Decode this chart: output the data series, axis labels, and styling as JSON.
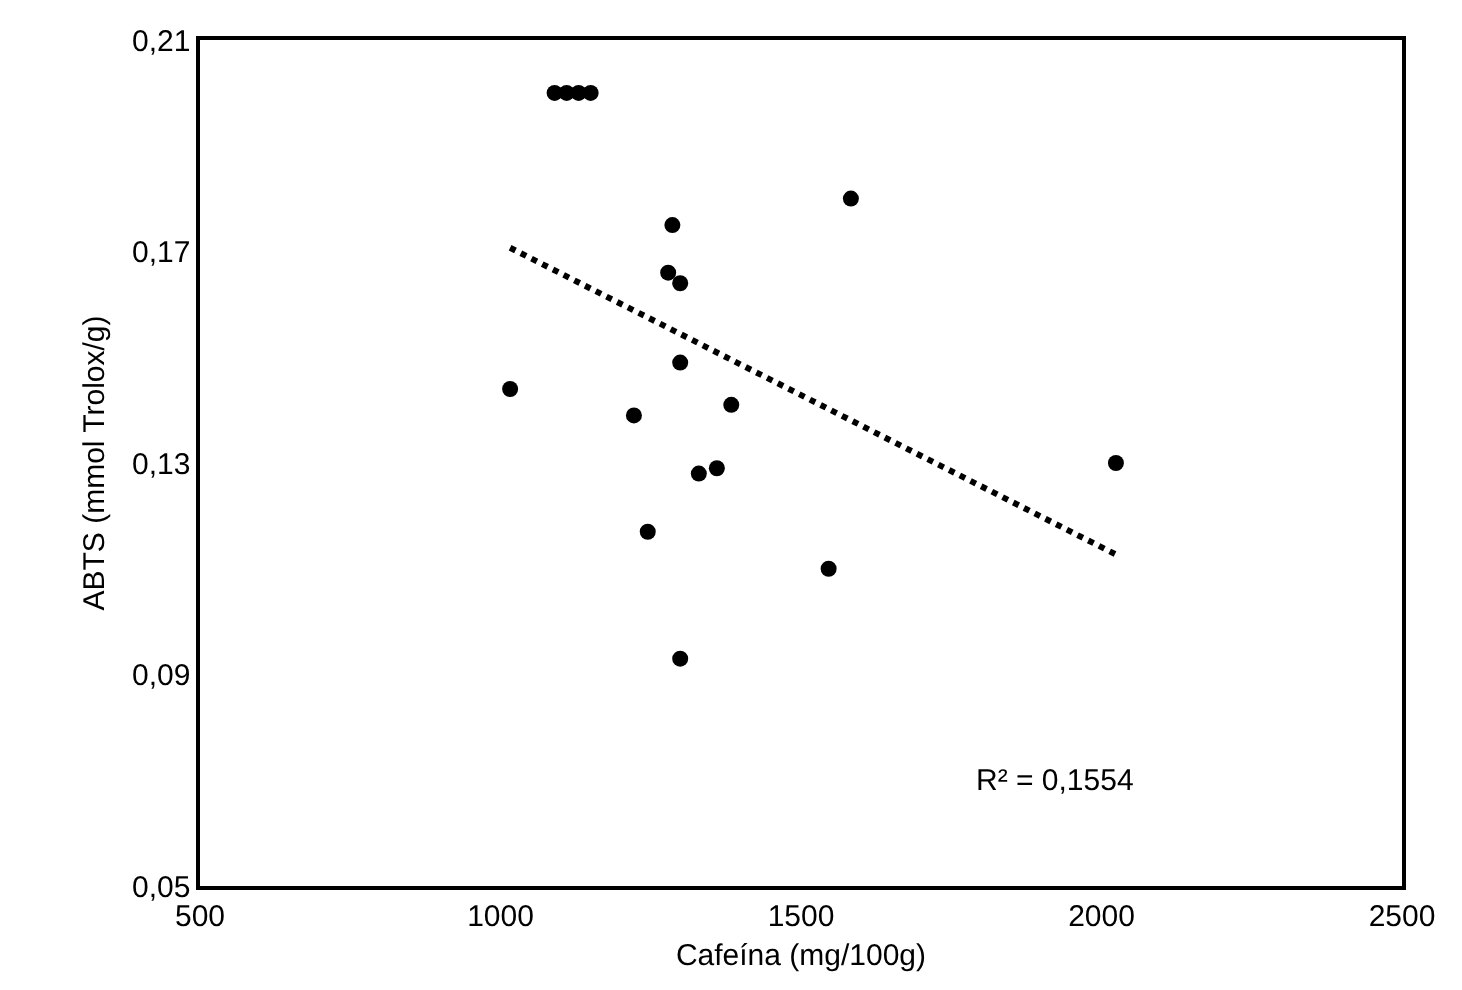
{
  "chart_data": {
    "type": "scatter",
    "xlabel": "Cafeína (mg/100g)",
    "ylabel": "ABTS (mmol Trolox/g)",
    "xlim": [
      500,
      2500
    ],
    "xticks": [
      500,
      1000,
      1500,
      2000,
      2500
    ],
    "ylim": [
      0.05,
      0.21
    ],
    "yticks": [
      {
        "value": 0.05,
        "label": "0,05"
      },
      {
        "value": 0.09,
        "label": "0,09"
      },
      {
        "value": 0.13,
        "label": "0,13"
      },
      {
        "value": 0.17,
        "label": "0,17"
      },
      {
        "value": 0.21,
        "label": "0,21"
      }
    ],
    "grid": false,
    "marker": "circle",
    "annotations": [
      "R² = 0,1554"
    ],
    "series": [
      {
        "color": "#000000",
        "x": [
          1090,
          1110,
          1130,
          1150,
          1286,
          1583,
          1279,
          1299,
          1299,
          1016,
          1222,
          1384,
          1330,
          1360,
          1245,
          1546,
          1299,
          2024
        ],
        "values": [
          0.2,
          0.2,
          0.2,
          0.2,
          0.175,
          0.18,
          0.166,
          0.164,
          0.149,
          0.144,
          0.139,
          0.141,
          0.128,
          0.129,
          0.117,
          0.11,
          0.093,
          0.13
        ]
      },
      {
        "type": "line",
        "line_style": "dotted",
        "marker": "none",
        "color": "#000000",
        "x": [
          1016,
          2024
        ],
        "values": [
          0.1707,
          0.1127
        ]
      }
    ]
  }
}
